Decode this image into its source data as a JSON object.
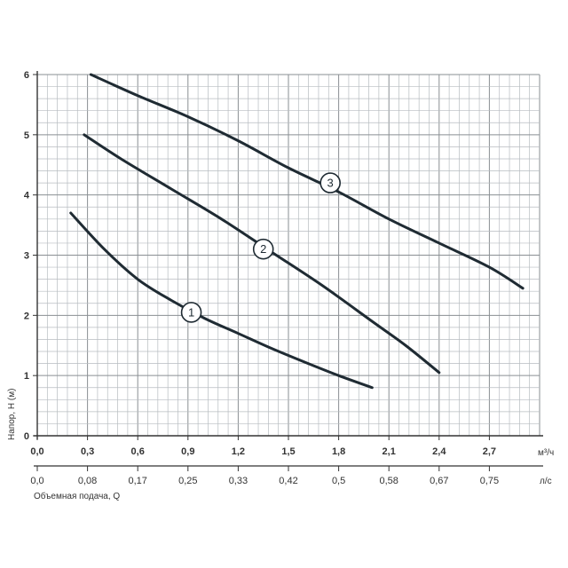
{
  "chart_data": {
    "type": "line",
    "title": "",
    "ylabel": "Напор, Н (м)",
    "xlabel": "Объемная подача, Q",
    "ylim": [
      0,
      6
    ],
    "xlim": [
      0,
      3.0
    ],
    "x_unit": "м³/ч",
    "x2_unit": "л/с",
    "y_ticks": [
      0,
      1,
      2,
      3,
      4,
      5,
      6
    ],
    "x_ticks": [
      {
        "value": 0.0,
        "label": "0,0"
      },
      {
        "value": 0.3,
        "label": "0,3"
      },
      {
        "value": 0.6,
        "label": "0,6"
      },
      {
        "value": 0.9,
        "label": "0,9"
      },
      {
        "value": 1.2,
        "label": "1,2"
      },
      {
        "value": 1.5,
        "label": "1,5"
      },
      {
        "value": 1.8,
        "label": "1,8"
      },
      {
        "value": 2.1,
        "label": "2,1"
      },
      {
        "value": 2.4,
        "label": "2,4"
      },
      {
        "value": 2.7,
        "label": "2,7"
      }
    ],
    "x2_ticks": [
      {
        "value": 0.0,
        "label": "0,0"
      },
      {
        "value": 0.3,
        "label": "0,08"
      },
      {
        "value": 0.6,
        "label": "0,17"
      },
      {
        "value": 0.9,
        "label": "0,25"
      },
      {
        "value": 1.2,
        "label": "0,33"
      },
      {
        "value": 1.5,
        "label": "0,42"
      },
      {
        "value": 1.8,
        "label": "0,5"
      },
      {
        "value": 2.1,
        "label": "0,58"
      },
      {
        "value": 2.4,
        "label": "0,67"
      },
      {
        "value": 2.7,
        "label": "0,75"
      }
    ],
    "grid": true,
    "series": [
      {
        "marker": "1",
        "marker_at": {
          "x": 0.92,
          "y": 2.05
        },
        "points": [
          [
            0.2,
            3.7
          ],
          [
            0.4,
            3.1
          ],
          [
            0.6,
            2.6
          ],
          [
            0.8,
            2.25
          ],
          [
            1.0,
            1.95
          ],
          [
            1.2,
            1.7
          ],
          [
            1.4,
            1.45
          ],
          [
            1.6,
            1.22
          ],
          [
            1.8,
            1.0
          ],
          [
            2.0,
            0.8
          ]
        ]
      },
      {
        "marker": "2",
        "marker_at": {
          "x": 1.35,
          "y": 3.1
        },
        "points": [
          [
            0.28,
            5.0
          ],
          [
            0.5,
            4.6
          ],
          [
            0.8,
            4.1
          ],
          [
            1.1,
            3.6
          ],
          [
            1.4,
            3.05
          ],
          [
            1.7,
            2.5
          ],
          [
            2.0,
            1.9
          ],
          [
            2.2,
            1.5
          ],
          [
            2.4,
            1.05
          ]
        ]
      },
      {
        "marker": "3",
        "marker_at": {
          "x": 1.75,
          "y": 4.2
        },
        "points": [
          [
            0.32,
            6.0
          ],
          [
            0.6,
            5.65
          ],
          [
            0.9,
            5.3
          ],
          [
            1.2,
            4.9
          ],
          [
            1.5,
            4.45
          ],
          [
            1.8,
            4.05
          ],
          [
            2.1,
            3.6
          ],
          [
            2.4,
            3.2
          ],
          [
            2.7,
            2.8
          ],
          [
            2.9,
            2.45
          ]
        ]
      }
    ]
  }
}
